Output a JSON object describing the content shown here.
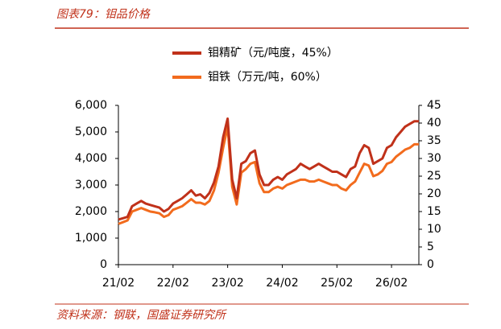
{
  "chart_data": {
    "type": "line",
    "title": "图表79：钼品价格",
    "source": "资料来源：钢联，国盛证券研究所",
    "categories": [
      "21/02",
      null,
      null,
      null,
      null,
      null,
      null,
      null,
      null,
      null,
      null,
      null,
      "22/02",
      null,
      null,
      null,
      null,
      null,
      null,
      null,
      null,
      null,
      null,
      null,
      "23/02",
      null,
      null,
      null,
      null,
      null,
      null,
      null,
      null,
      null,
      null,
      null,
      "24/02",
      null,
      null,
      null,
      null,
      null,
      null,
      null,
      null,
      null,
      null,
      null,
      "25/02",
      null,
      null,
      null,
      null,
      null,
      null,
      null,
      null,
      null,
      null,
      null,
      "26/02",
      null,
      null,
      null,
      null,
      null,
      null
    ],
    "series": [
      {
        "name": "钼精矿（元/吨度，45%）",
        "color": "#c0311a",
        "axis": "y",
        "values": [
          1700,
          1750,
          1800,
          2200,
          2300,
          2400,
          2300,
          2250,
          2200,
          2150,
          2000,
          2100,
          2300,
          2400,
          2500,
          2650,
          2800,
          2600,
          2650,
          2500,
          2700,
          3100,
          3700,
          4800,
          5500,
          3200,
          2500,
          3800,
          3900,
          4200,
          4300,
          3400,
          3000,
          3000,
          3200,
          3300,
          3200,
          3400,
          3500,
          3600,
          3800,
          3700,
          3600,
          3700,
          3800,
          3700,
          3600,
          3500,
          3500,
          3400,
          3300,
          3600,
          3700,
          4200,
          4500,
          4400,
          3800,
          3900,
          4000,
          4400,
          4500,
          4800,
          5000,
          5200,
          5300,
          5400,
          5400
        ]
      },
      {
        "name": "钼铁（万元/吨，60%）",
        "color": "#f26b1d",
        "axis": "y2",
        "values": [
          11.5,
          12,
          12.5,
          15,
          15.5,
          16,
          15.5,
          15,
          14.8,
          14.5,
          13.5,
          14,
          15.5,
          16,
          16.5,
          17.5,
          18.5,
          17.5,
          17.5,
          17,
          18,
          21,
          26,
          33,
          39,
          22,
          17,
          26,
          27,
          28.5,
          29,
          23,
          20.5,
          20.5,
          21.5,
          22,
          21.5,
          22.5,
          23,
          23.5,
          24,
          24,
          23.5,
          23.5,
          24,
          23.5,
          23,
          22.5,
          22.5,
          21.5,
          21,
          22.5,
          23.5,
          26,
          28.5,
          28,
          25,
          25.5,
          26.5,
          28.5,
          29,
          30.5,
          31.5,
          32.5,
          33,
          34,
          34
        ]
      }
    ],
    "ylim": [
      0,
      6000
    ],
    "yticks": [
      0,
      {
        "value": 1000,
        "label": "1,000"
      },
      {
        "value": 2000,
        "label": "2,000"
      },
      {
        "value": 3000,
        "label": "3,000"
      },
      {
        "value": 4000,
        "label": "4,000"
      },
      {
        "value": 5000,
        "label": "5,000"
      },
      {
        "value": 6000,
        "label": "6,000"
      }
    ],
    "y2lim": [
      0,
      45
    ],
    "y2ticks": [
      0,
      5,
      10,
      15,
      20,
      25,
      30,
      35,
      40,
      45
    ]
  }
}
